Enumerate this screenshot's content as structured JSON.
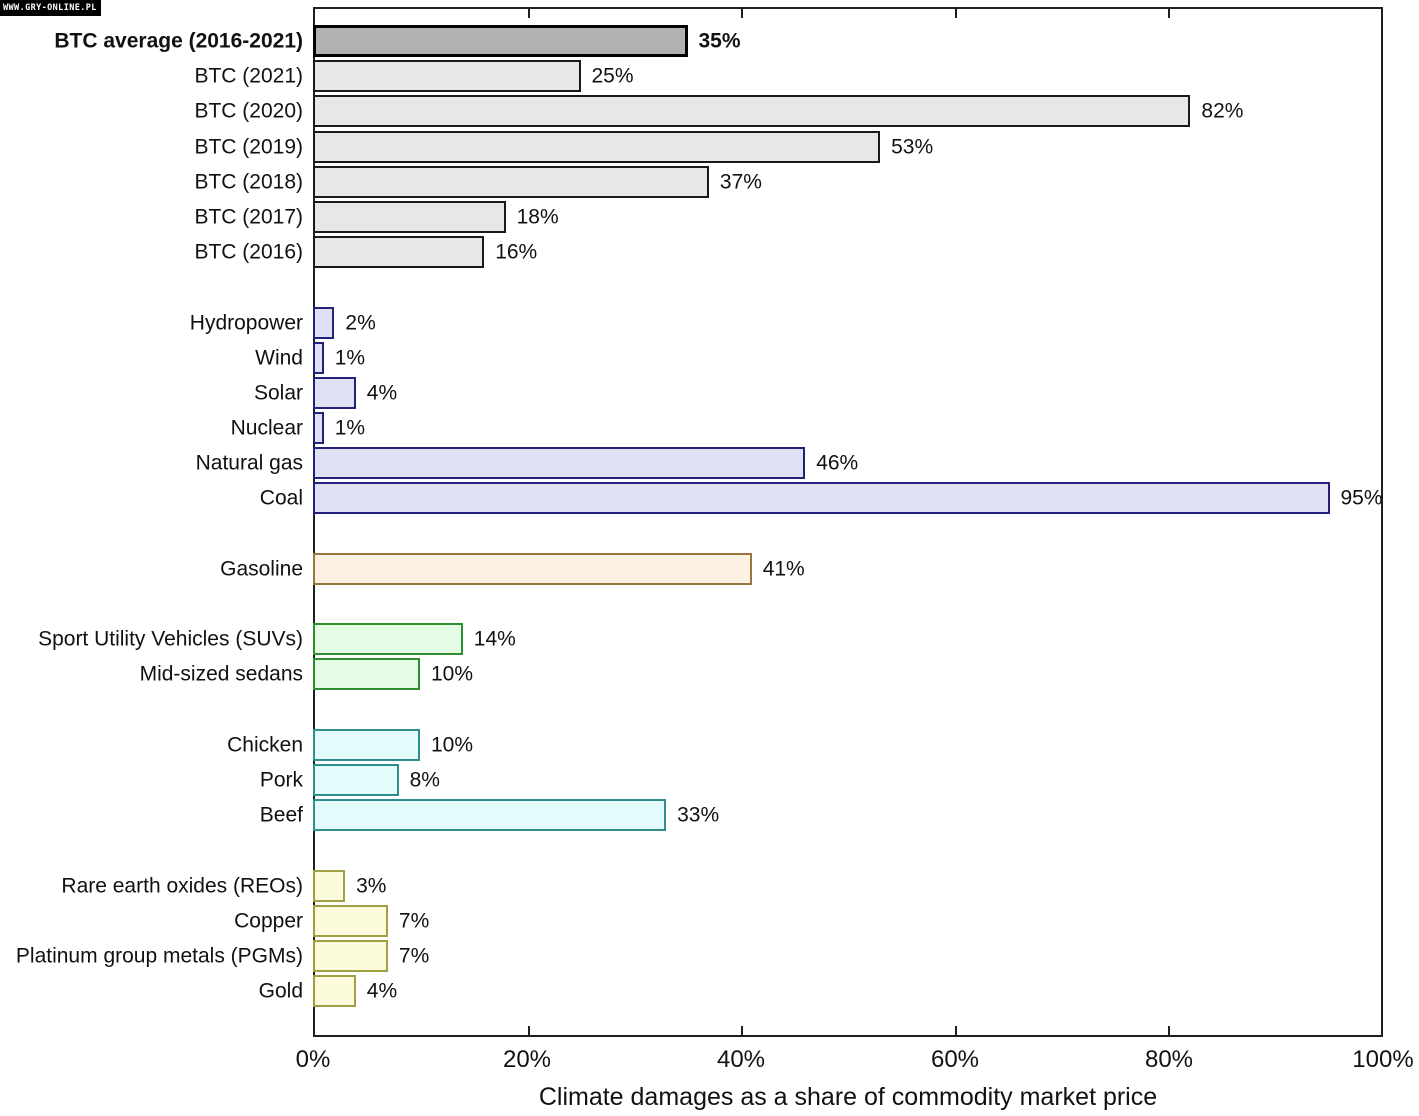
{
  "watermark": "WWW.GRY-ONLINE.PL",
  "chart_data": {
    "type": "bar",
    "orientation": "horizontal",
    "title": "",
    "xlabel": "Climate damages as a share of commodity market price",
    "ylabel": "",
    "xlim": [
      0,
      100
    ],
    "grid": false,
    "x_ticks": [
      {
        "value": 0,
        "label": "0%"
      },
      {
        "value": 20,
        "label": "20%"
      },
      {
        "value": 40,
        "label": "40%"
      },
      {
        "value": 60,
        "label": "60%"
      },
      {
        "value": 80,
        "label": "80%"
      },
      {
        "value": 100,
        "label": "100%"
      }
    ],
    "axis_color": "#1f1f1f",
    "groups": [
      {
        "name": "bitcoin-average",
        "fill": "#b1b1b1",
        "stroke": "#000000",
        "border_px": 3,
        "bold": true,
        "gap_before": false,
        "items": [
          {
            "label": "BTC average (2016-2021)",
            "value": 35,
            "display": "35%"
          }
        ]
      },
      {
        "name": "bitcoin-years",
        "fill": "#e7e7e7",
        "stroke": "#1a1a1a",
        "border_px": 2,
        "bold": false,
        "gap_before": false,
        "items": [
          {
            "label": "BTC (2021)",
            "value": 25,
            "display": "25%"
          },
          {
            "label": "BTC (2020)",
            "value": 82,
            "display": "82%"
          },
          {
            "label": "BTC (2019)",
            "value": 53,
            "display": "53%"
          },
          {
            "label": "BTC (2018)",
            "value": 37,
            "display": "37%"
          },
          {
            "label": "BTC (2017)",
            "value": 18,
            "display": "18%"
          },
          {
            "label": "BTC (2016)",
            "value": 16,
            "display": "16%"
          }
        ]
      },
      {
        "name": "electricity",
        "fill": "#e0e0f5",
        "stroke": "#22227d",
        "border_px": 2,
        "bold": false,
        "gap_before": true,
        "items": [
          {
            "label": "Hydropower",
            "value": 2,
            "display": "2%"
          },
          {
            "label": "Wind",
            "value": 1,
            "display": "1%"
          },
          {
            "label": "Solar",
            "value": 4,
            "display": "4%"
          },
          {
            "label": "Nuclear",
            "value": 1,
            "display": "1%"
          },
          {
            "label": "Natural gas",
            "value": 46,
            "display": "46%"
          },
          {
            "label": "Coal",
            "value": 95,
            "display": "95%"
          }
        ]
      },
      {
        "name": "fuel",
        "fill": "#fdf1e2",
        "stroke": "#97773f",
        "border_px": 2,
        "bold": false,
        "gap_before": true,
        "items": [
          {
            "label": "Gasoline",
            "value": 41,
            "display": "41%"
          }
        ]
      },
      {
        "name": "vehicles",
        "fill": "#e4fce4",
        "stroke": "#2f8e2f",
        "border_px": 2,
        "bold": false,
        "gap_before": true,
        "items": [
          {
            "label": "Sport Utility Vehicles (SUVs)",
            "value": 14,
            "display": "14%"
          },
          {
            "label": "Mid-sized sedans",
            "value": 10,
            "display": "10%"
          }
        ]
      },
      {
        "name": "meat",
        "fill": "#e2fbfb",
        "stroke": "#2f8e8e",
        "border_px": 2,
        "bold": false,
        "gap_before": true,
        "items": [
          {
            "label": "Chicken",
            "value": 10,
            "display": "10%"
          },
          {
            "label": "Pork",
            "value": 8,
            "display": "8%"
          },
          {
            "label": "Beef",
            "value": 33,
            "display": "33%"
          }
        ]
      },
      {
        "name": "metals",
        "fill": "#fbfbdb",
        "stroke": "#a0a042",
        "border_px": 2,
        "bold": false,
        "gap_before": true,
        "items": [
          {
            "label": "Rare earth oxides (REOs)",
            "value": 3,
            "display": "3%"
          },
          {
            "label": "Copper",
            "value": 7,
            "display": "7%"
          },
          {
            "label": "Platinum group metals (PGMs)",
            "value": 7,
            "display": "7%"
          },
          {
            "label": "Gold",
            "value": 4,
            "display": "4%"
          }
        ]
      }
    ]
  }
}
